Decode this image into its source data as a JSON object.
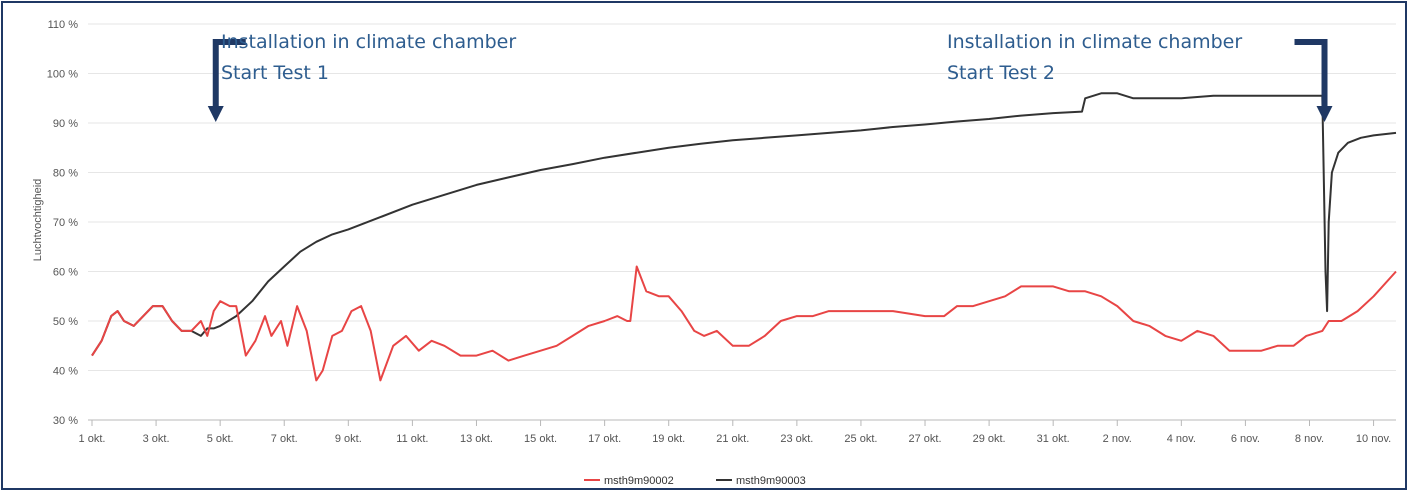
{
  "chart_data": {
    "type": "line",
    "title": "",
    "xlabel": "",
    "ylabel": "Luchtvochtigheid",
    "y_tick_labels": [
      "30 %",
      "40 %",
      "50 %",
      "60 %",
      "70 %",
      "80 %",
      "90 %",
      "100 %",
      "110 %"
    ],
    "ylim": [
      30,
      110
    ],
    "x_tick_labels": [
      "1 okt.",
      "3 okt.",
      "5 okt.",
      "7 okt.",
      "9 okt.",
      "11 okt.",
      "13 okt.",
      "15 okt.",
      "17 okt.",
      "19 okt.",
      "21 okt.",
      "23 okt.",
      "25 okt.",
      "27 okt.",
      "29 okt.",
      "31 okt.",
      "2 nov.",
      "4 nov.",
      "6 nov.",
      "8 nov.",
      "10 nov."
    ],
    "x_unit": "days since 1 okt.",
    "xlim": [
      0,
      40.7
    ],
    "grid": "horizontal",
    "legend_position": "bottom-center",
    "series": [
      {
        "name": "msth9m90002",
        "color": "#e84545",
        "x": [
          0,
          0.3,
          0.6,
          0.8,
          1.0,
          1.3,
          1.6,
          1.9,
          2.2,
          2.5,
          2.8,
          3.1,
          3.4,
          3.6,
          3.8,
          4.0,
          4.3,
          4.5,
          4.8,
          5.1,
          5.4,
          5.6,
          5.9,
          6.1,
          6.4,
          6.7,
          7.0,
          7.2,
          7.5,
          7.8,
          8.1,
          8.4,
          8.7,
          9.0,
          9.4,
          9.8,
          10.2,
          10.6,
          11.0,
          11.5,
          12.0,
          12.5,
          13.0,
          13.5,
          14.0,
          14.5,
          15.0,
          15.5,
          16.0,
          16.4,
          16.7,
          16.8,
          17.0,
          17.3,
          17.7,
          18.0,
          18.4,
          18.8,
          19.1,
          19.5,
          20.0,
          20.5,
          21.0,
          21.5,
          22.0,
          22.5,
          23.0,
          24.0,
          25.0,
          26.0,
          26.6,
          27.0,
          27.5,
          28.0,
          28.5,
          29.0,
          29.5,
          30.0,
          30.5,
          31.0,
          31.5,
          32.0,
          32.5,
          33.0,
          33.5,
          34.0,
          34.5,
          35.0,
          35.5,
          36.0,
          36.5,
          37.0,
          37.5,
          37.9,
          38.4,
          38.6,
          39.0,
          39.5,
          40.0,
          40.7
        ],
        "values": [
          43,
          46,
          51,
          52,
          50,
          49,
          51,
          53,
          53,
          50,
          48,
          48,
          50,
          47,
          52,
          54,
          53,
          53,
          43,
          46,
          51,
          47,
          50,
          45,
          53,
          48,
          38,
          40,
          47,
          48,
          52,
          53,
          48,
          38,
          45,
          47,
          44,
          46,
          45,
          43,
          43,
          44,
          42,
          43,
          44,
          45,
          47,
          49,
          50,
          51,
          50,
          50,
          61,
          56,
          55,
          55,
          52,
          48,
          47,
          48,
          45,
          45,
          47,
          50,
          51,
          51,
          52,
          52,
          52,
          51,
          51,
          53,
          53,
          54,
          55,
          57,
          57,
          57,
          56,
          56,
          55,
          53,
          50,
          49,
          47,
          46,
          48,
          47,
          44,
          44,
          44,
          45,
          45,
          47,
          48,
          50,
          50,
          52,
          55,
          60
        ]
      },
      {
        "name": "msth9m90003",
        "color": "#333333",
        "x": [
          0,
          0.3,
          0.6,
          0.8,
          1.0,
          1.3,
          1.6,
          1.9,
          2.2,
          2.5,
          2.8,
          3.1,
          3.4,
          3.6,
          3.8,
          4.0,
          4.5,
          5.0,
          5.5,
          6.0,
          6.5,
          7.0,
          7.5,
          8.0,
          9.0,
          10.0,
          11.0,
          12.0,
          13.0,
          14.0,
          15.0,
          16.0,
          17.0,
          18.0,
          19.0,
          20.0,
          21.0,
          22.0,
          23.0,
          24.0,
          25.0,
          26.0,
          27.0,
          28.0,
          29.0,
          30.0,
          30.9,
          31.0,
          31.5,
          32.0,
          32.5,
          32.8,
          33.0,
          34.0,
          35.0,
          36.0,
          37.0,
          37.5,
          38.0,
          38.4,
          38.5,
          38.55,
          38.6,
          38.7,
          38.9,
          39.2,
          39.6,
          40.0,
          40.7
        ],
        "values": [
          43,
          46,
          51,
          52,
          50,
          49,
          51,
          53,
          53,
          50,
          48,
          48,
          47,
          48.5,
          48.5,
          49,
          51,
          54,
          58,
          61,
          64,
          66,
          67.5,
          68.5,
          71,
          73.5,
          75.5,
          77.5,
          79,
          80.5,
          81.7,
          83,
          84,
          85,
          85.8,
          86.5,
          87,
          87.5,
          88,
          88.5,
          89.2,
          89.7,
          90.3,
          90.8,
          91.5,
          92,
          92.3,
          95,
          96,
          96,
          95,
          95,
          95,
          95,
          95.5,
          95.5,
          95.5,
          95.5,
          95.5,
          95.5,
          60,
          52,
          70,
          80,
          84,
          86,
          87,
          87.5,
          88
        ]
      }
    ],
    "annotations": [
      {
        "lines": [
          "Installation in climate chamber",
          "Start Test 1"
        ],
        "x": 3.8
      },
      {
        "lines": [
          "Installation in climate chamber",
          "Start Test 2"
        ],
        "x": 38.5
      }
    ]
  }
}
